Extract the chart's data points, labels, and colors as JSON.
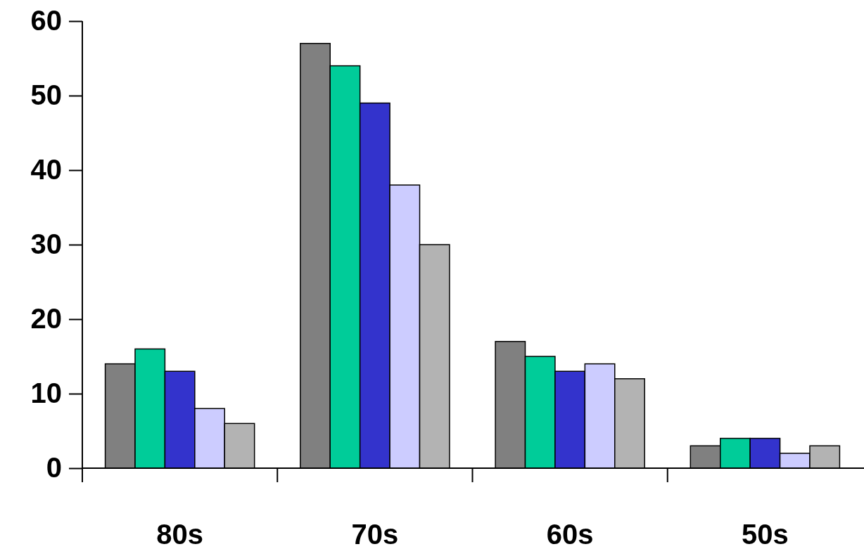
{
  "chart_data": {
    "type": "bar",
    "categories": [
      "80s",
      "70s",
      "60s",
      "50s"
    ],
    "series": [
      {
        "color": "#808080",
        "values": [
          14,
          57,
          17,
          3
        ]
      },
      {
        "color": "#00cc99",
        "values": [
          16,
          54,
          15,
          4
        ]
      },
      {
        "color": "#3333cc",
        "values": [
          13,
          49,
          13,
          4
        ]
      },
      {
        "color": "#ccccff",
        "values": [
          8,
          38,
          14,
          2
        ]
      },
      {
        "color": "#b3b3b3",
        "values": [
          6,
          30,
          12,
          3
        ]
      }
    ],
    "ylim": [
      0,
      60
    ],
    "yticks": [
      0,
      10,
      20,
      30,
      40,
      50,
      60
    ],
    "grid": false,
    "legend": false
  }
}
